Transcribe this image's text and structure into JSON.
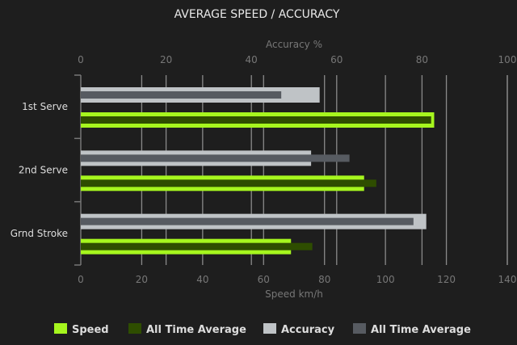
{
  "chart_data": {
    "type": "bar",
    "orientation": "horizontal",
    "title": "AVERAGE SPEED / ACCURACY",
    "categories": [
      "1st Serve",
      "2nd Serve",
      "Grnd Stroke"
    ],
    "x_bottom": {
      "label": "Speed km/h",
      "range": [
        0,
        140
      ],
      "ticks": [
        "0",
        "20",
        "40",
        "60",
        "80",
        "100",
        "120",
        "140"
      ]
    },
    "x_top": {
      "label": "Accuracy %",
      "range": [
        0,
        100
      ],
      "ticks": [
        "0",
        "20",
        "40",
        "60",
        "80",
        "100"
      ]
    },
    "grid": true,
    "legend_position": "bottom",
    "series": [
      {
        "name": "Speed",
        "axis": "speed",
        "values": [
          116,
          93,
          69
        ],
        "color": "#a6f61e"
      },
      {
        "name": "All Time Average",
        "axis": "speed",
        "values": [
          115,
          97,
          76
        ],
        "color": "#2e4d00"
      },
      {
        "name": "Accuracy",
        "axis": "accuracy",
        "values": [
          56,
          54,
          81
        ],
        "color": "#bfc3c6"
      },
      {
        "name": "All Time Average",
        "axis": "accuracy",
        "values": [
          47,
          63,
          78
        ],
        "color": "#575b61"
      }
    ]
  }
}
